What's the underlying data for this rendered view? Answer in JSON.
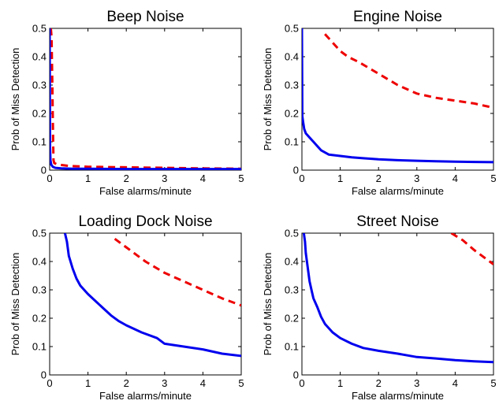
{
  "chart_data": [
    {
      "type": "line",
      "title": "Beep Noise",
      "xlabel": "False alarms/minute",
      "ylabel": "Prob of Miss Detection",
      "xlim": [
        0,
        5
      ],
      "ylim": [
        0,
        0.5
      ],
      "xticks": [
        "0",
        "1",
        "2",
        "3",
        "4",
        "5"
      ],
      "yticks": [
        "0",
        "0.1",
        "0.2",
        "0.3",
        "0.4",
        "0.5"
      ],
      "grid": false,
      "series": [
        {
          "color": "#0000ee",
          "style": "solid",
          "x": [
            0.0,
            0.01,
            0.02,
            0.04,
            0.08,
            0.15,
            0.3,
            0.6,
            1.0,
            2.0,
            3.0,
            4.0,
            5.0
          ],
          "y": [
            0.5,
            0.08,
            0.035,
            0.02,
            0.012,
            0.008,
            0.006,
            0.005,
            0.005,
            0.004,
            0.004,
            0.004,
            0.004
          ]
        },
        {
          "color": "#ee0000",
          "style": "dashed",
          "x": [
            0.03,
            0.05,
            0.07,
            0.09,
            0.1,
            0.12,
            0.2,
            0.5,
            1.0,
            2.0,
            3.0,
            4.0,
            5.0
          ],
          "y": [
            0.5,
            0.47,
            0.3,
            0.1,
            0.035,
            0.025,
            0.02,
            0.015,
            0.012,
            0.01,
            0.008,
            0.006,
            0.005
          ]
        }
      ]
    },
    {
      "type": "line",
      "title": "Engine Noise",
      "xlabel": "False alarms/minute",
      "ylabel": "Prob of Miss Detection",
      "xlim": [
        0,
        5
      ],
      "ylim": [
        0,
        0.5
      ],
      "xticks": [
        "0",
        "1",
        "2",
        "3",
        "4",
        "5"
      ],
      "yticks": [
        "0",
        "0.1",
        "0.2",
        "0.3",
        "0.4",
        "0.5"
      ],
      "grid": false,
      "series": [
        {
          "color": "#0000ee",
          "style": "solid",
          "x": [
            0.0,
            0.01,
            0.03,
            0.06,
            0.1,
            0.2,
            0.3,
            0.4,
            0.5,
            0.7,
            1.0,
            1.3,
            1.6,
            2.0,
            2.5,
            3.0,
            3.5,
            4.0,
            4.5,
            5.0
          ],
          "y": [
            0.5,
            0.19,
            0.17,
            0.145,
            0.13,
            0.115,
            0.1,
            0.085,
            0.07,
            0.055,
            0.05,
            0.045,
            0.042,
            0.038,
            0.035,
            0.033,
            0.031,
            0.03,
            0.029,
            0.028
          ]
        },
        {
          "color": "#ee0000",
          "style": "dashed",
          "x": [
            0.6,
            0.8,
            1.0,
            1.2,
            1.5,
            2.0,
            2.5,
            3.0,
            3.5,
            4.0,
            4.5,
            5.0
          ],
          "y": [
            0.48,
            0.45,
            0.42,
            0.4,
            0.38,
            0.34,
            0.3,
            0.27,
            0.255,
            0.245,
            0.235,
            0.22
          ]
        }
      ]
    },
    {
      "type": "line",
      "title": "Loading Dock Noise",
      "xlabel": "False alarms/minute",
      "ylabel": "Prob of Miss Detection",
      "xlim": [
        0,
        5
      ],
      "ylim": [
        0,
        0.5
      ],
      "xticks": [
        "0",
        "1",
        "2",
        "3",
        "4",
        "5"
      ],
      "yticks": [
        "0",
        "0.1",
        "0.2",
        "0.3",
        "0.4",
        "0.5"
      ],
      "grid": false,
      "series": [
        {
          "color": "#0000ee",
          "style": "solid",
          "x": [
            0.4,
            0.45,
            0.5,
            0.6,
            0.7,
            0.8,
            1.0,
            1.2,
            1.4,
            1.6,
            1.8,
            2.0,
            2.4,
            2.8,
            3.0,
            3.5,
            4.0,
            4.5,
            5.0
          ],
          "y": [
            0.5,
            0.47,
            0.42,
            0.375,
            0.34,
            0.315,
            0.285,
            0.26,
            0.235,
            0.21,
            0.19,
            0.175,
            0.15,
            0.13,
            0.11,
            0.1,
            0.09,
            0.075,
            0.067
          ]
        },
        {
          "color": "#ee0000",
          "style": "dashed",
          "x": [
            1.7,
            2.0,
            2.5,
            3.0,
            3.5,
            4.0,
            4.5,
            5.0
          ],
          "y": [
            0.48,
            0.45,
            0.4,
            0.36,
            0.33,
            0.3,
            0.27,
            0.245
          ]
        }
      ]
    },
    {
      "type": "line",
      "title": "Street Noise",
      "xlabel": "False alarms/minute",
      "ylabel": "Prob of Miss Detection",
      "xlim": [
        0,
        5
      ],
      "ylim": [
        0,
        0.5
      ],
      "xticks": [
        "0",
        "1",
        "2",
        "3",
        "4",
        "5"
      ],
      "yticks": [
        "0",
        "0.1",
        "0.2",
        "0.3",
        "0.4",
        "0.5"
      ],
      "grid": false,
      "series": [
        {
          "color": "#0000ee",
          "style": "solid",
          "x": [
            0.05,
            0.08,
            0.1,
            0.15,
            0.2,
            0.25,
            0.3,
            0.4,
            0.5,
            0.6,
            0.8,
            1.0,
            1.3,
            1.6,
            2.0,
            2.5,
            3.0,
            3.5,
            4.0,
            4.5,
            5.0
          ],
          "y": [
            0.5,
            0.47,
            0.43,
            0.38,
            0.33,
            0.3,
            0.27,
            0.24,
            0.205,
            0.18,
            0.15,
            0.13,
            0.11,
            0.095,
            0.085,
            0.075,
            0.063,
            0.058,
            0.052,
            0.048,
            0.045
          ]
        },
        {
          "color": "#ee0000",
          "style": "dashed",
          "x": [
            3.9,
            4.2,
            4.5,
            4.8,
            5.0
          ],
          "y": [
            0.5,
            0.475,
            0.44,
            0.41,
            0.39
          ]
        }
      ]
    }
  ]
}
